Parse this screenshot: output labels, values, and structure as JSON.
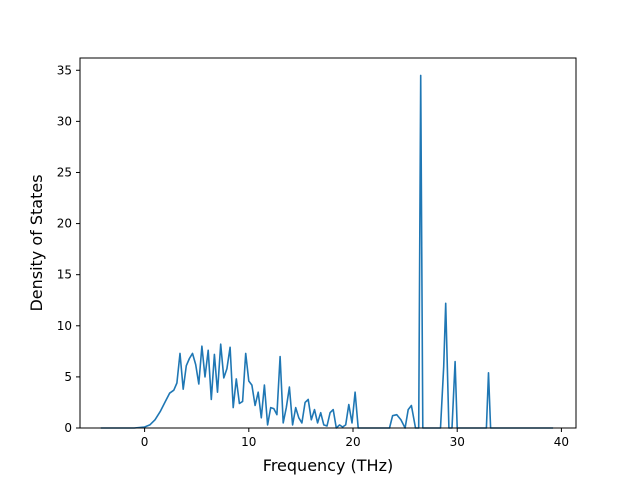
{
  "chart_data": {
    "type": "line",
    "title": "",
    "xlabel": "Frequency (THz)",
    "ylabel": "Density of States",
    "xlim": [
      -6.2,
      41.4
    ],
    "ylim": [
      0,
      36.2
    ],
    "xticks": [
      0,
      10,
      20,
      30,
      40
    ],
    "yticks": [
      0,
      5,
      10,
      15,
      20,
      25,
      30,
      35
    ],
    "xtick_labels": [
      "0",
      "10",
      "20",
      "30",
      "40"
    ],
    "ytick_labels": [
      "0",
      "5",
      "10",
      "15",
      "20",
      "25",
      "30",
      "35"
    ],
    "grid": false,
    "legend": null,
    "series": [
      {
        "color": "#1f77b4",
        "x": [
          -4.2,
          -1.0,
          0.0,
          0.5,
          1.0,
          1.5,
          2.0,
          2.4,
          2.8,
          3.1,
          3.4,
          3.7,
          4.0,
          4.3,
          4.6,
          4.9,
          5.2,
          5.5,
          5.8,
          6.1,
          6.4,
          6.7,
          7.0,
          7.3,
          7.6,
          7.9,
          8.2,
          8.5,
          8.8,
          9.1,
          9.4,
          9.7,
          10.0,
          10.3,
          10.6,
          10.9,
          11.2,
          11.5,
          11.8,
          12.1,
          12.4,
          12.7,
          13.0,
          13.3,
          13.6,
          13.9,
          14.2,
          14.5,
          14.8,
          15.1,
          15.4,
          15.7,
          16.0,
          16.3,
          16.6,
          16.9,
          17.2,
          17.5,
          17.8,
          18.1,
          18.4,
          18.7,
          19.0,
          19.3,
          19.6,
          19.9,
          20.2,
          20.5,
          21.0,
          23.5,
          23.8,
          24.2,
          24.6,
          25.0,
          25.3,
          25.6,
          26.0,
          26.3,
          26.5,
          26.7,
          26.9,
          27.2,
          28.4,
          28.7,
          28.9,
          29.2,
          29.5,
          29.8,
          30.0,
          30.3,
          32.5,
          32.8,
          33.0,
          33.2,
          33.6,
          39.2
        ],
        "y": [
          0,
          0,
          0.1,
          0.3,
          0.8,
          1.6,
          2.6,
          3.4,
          3.7,
          4.4,
          7.3,
          3.8,
          6.1,
          6.8,
          7.3,
          6.2,
          4.3,
          8.0,
          5.0,
          7.6,
          2.8,
          7.2,
          3.5,
          8.2,
          4.9,
          5.8,
          7.9,
          2.0,
          4.8,
          2.4,
          2.6,
          7.3,
          4.6,
          4.2,
          2.2,
          3.5,
          1.0,
          4.2,
          0.3,
          2.0,
          1.9,
          1.3,
          7.0,
          0.5,
          2.0,
          4.0,
          0.3,
          2.0,
          1.0,
          0.5,
          2.5,
          2.8,
          0.8,
          1.8,
          0.5,
          1.5,
          0.3,
          0.2,
          1.5,
          1.8,
          0.0,
          0.3,
          0.1,
          0.3,
          2.3,
          0.5,
          3.5,
          0.0,
          0.0,
          0.0,
          1.2,
          1.3,
          0.8,
          0.0,
          1.8,
          2.2,
          0.0,
          0.0,
          34.5,
          0.0,
          0.0,
          0.0,
          0.0,
          6.0,
          12.2,
          0.0,
          0.0,
          6.5,
          0.0,
          0.0,
          0.0,
          0.0,
          5.4,
          0.0,
          0.0,
          0.0
        ]
      }
    ]
  }
}
